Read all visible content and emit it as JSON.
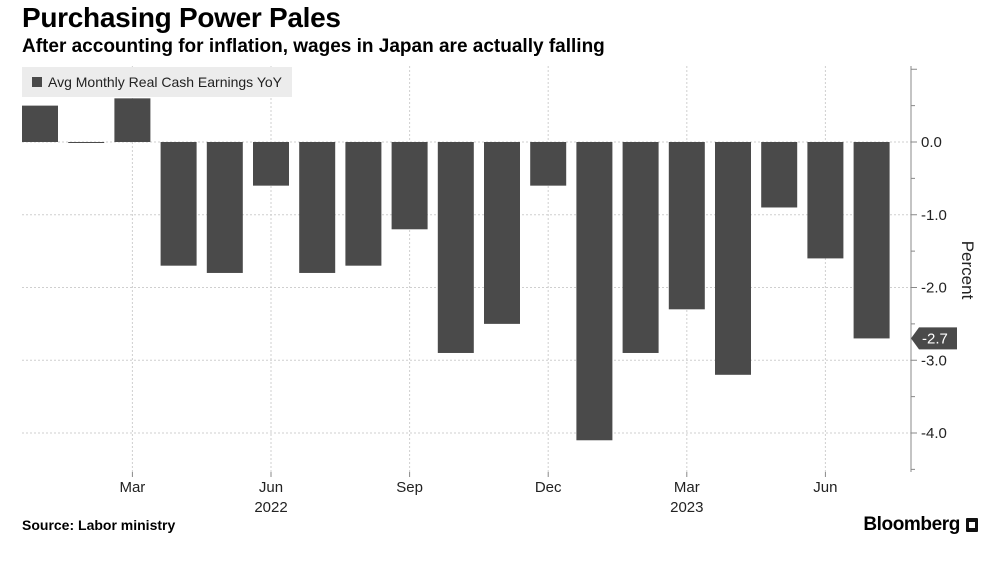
{
  "header": {
    "title": "Purchasing Power Pales",
    "subtitle": "After accounting for inflation, wages in Japan are actually falling"
  },
  "footer": {
    "source": "Source: Labor ministry",
    "brand": "Bloomberg"
  },
  "colors": {
    "bar": "#4a4a4a",
    "grid": "#cfcfcf",
    "axis": "#888888",
    "callout_bg": "#4a4a4a",
    "callout_text": "#ffffff"
  },
  "chart_data": {
    "type": "bar",
    "categories": [
      "Jan 2022",
      "Feb 2022",
      "Mar 2022",
      "Apr 2022",
      "May 2022",
      "Jun 2022",
      "Jul 2022",
      "Aug 2022",
      "Sep 2022",
      "Oct 2022",
      "Nov 2022",
      "Dec 2022",
      "Jan 2023",
      "Feb 2023",
      "Mar 2023",
      "Apr 2023",
      "May 2023",
      "Jun 2023",
      "Jul 2023"
    ],
    "series": [
      {
        "name": "Avg Monthly Real Cash Earnings YoY",
        "values": [
          0.5,
          0.0,
          0.6,
          -1.7,
          -1.8,
          -0.6,
          -1.8,
          -1.7,
          -1.2,
          -2.9,
          -2.5,
          -0.6,
          -4.1,
          -2.9,
          -2.3,
          -3.2,
          -0.9,
          -1.6,
          -2.7
        ]
      }
    ],
    "x_tick_labels": [
      {
        "index": 2,
        "label": "Mar"
      },
      {
        "index": 5,
        "label": "Jun"
      },
      {
        "index": 8,
        "label": "Sep"
      },
      {
        "index": 11,
        "label": "Dec"
      },
      {
        "index": 14,
        "label": "Mar"
      },
      {
        "index": 17,
        "label": "Jun"
      }
    ],
    "year_labels": [
      {
        "index": 5,
        "label": "2022"
      },
      {
        "index": 14,
        "label": "2023"
      }
    ],
    "y_ticks": [
      0.0,
      -1.0,
      -2.0,
      -3.0,
      -4.0
    ],
    "y_tick_labels": [
      "0.0",
      "-1.0",
      "-2.0",
      "-3.0",
      "-4.0"
    ],
    "ylabel": "Percent",
    "ylim": [
      -4.5,
      1.0
    ],
    "callout": {
      "value": -2.7,
      "label": "-2.7"
    },
    "grid": true,
    "legend_position": "top-left",
    "y_axis_side": "right"
  }
}
